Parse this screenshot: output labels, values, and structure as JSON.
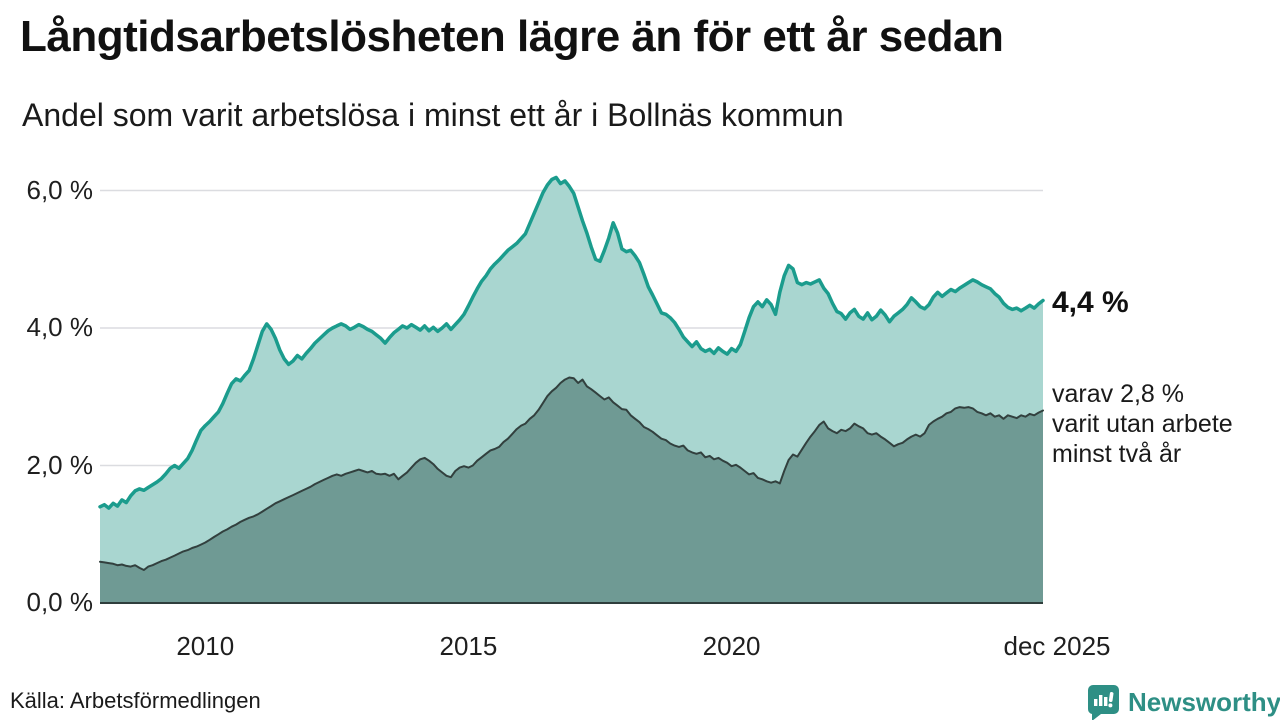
{
  "header": {
    "title": "Långtidsarbetslösheten lägre än för ett år sedan",
    "subtitle": "Andel som varit arbetslösa i minst ett år i Bollnäs kommun"
  },
  "annotations": {
    "latest_total": "4,4 %",
    "breakdown_lines": [
      "varav 2,8 %",
      "varit utan arbete",
      "minst två år"
    ]
  },
  "footer": {
    "source": "Källa: Arbetsförmedlingen",
    "brand_name": "Newsworthy",
    "brand_color": "#2e8f85"
  },
  "chart_data": {
    "type": "area",
    "unit": "%",
    "x_monthly_start": "2008-01",
    "x_monthly_end": "2025-12",
    "ylim": [
      0,
      6.6
    ],
    "grid": true,
    "grid_color": "#dbdce0",
    "axis_line_color": "#2f3e3c",
    "y_ticks": [
      {
        "label": "0,0 %",
        "v": 0
      },
      {
        "label": "2,0 %",
        "v": 2
      },
      {
        "label": "4,0 %",
        "v": 4
      },
      {
        "label": "6,0 %",
        "v": 6
      }
    ],
    "x_ticks": [
      {
        "label": "2010",
        "t": 2010.0,
        "dx": 0
      },
      {
        "label": "2015",
        "t": 2015.0,
        "dx": 0
      },
      {
        "label": "2020",
        "t": 2020.0,
        "dx": 0
      },
      {
        "label": "dec 2025",
        "t": 2025.917,
        "dx": 14
      }
    ],
    "series": [
      {
        "name": "Andel arbetslösa minst ett år",
        "line_color": "#1b9c8d",
        "fill_color": "#a9d6d0",
        "line_width": 3.5,
        "last_value_label": "4,4 %",
        "values": [
          1.4,
          1.43,
          1.38,
          1.45,
          1.41,
          1.5,
          1.46,
          1.56,
          1.63,
          1.66,
          1.64,
          1.68,
          1.72,
          1.76,
          1.81,
          1.88,
          1.96,
          2.0,
          1.96,
          2.03,
          2.1,
          2.22,
          2.37,
          2.51,
          2.58,
          2.64,
          2.71,
          2.78,
          2.9,
          3.05,
          3.19,
          3.26,
          3.23,
          3.31,
          3.38,
          3.55,
          3.75,
          3.95,
          4.06,
          3.98,
          3.85,
          3.68,
          3.55,
          3.47,
          3.52,
          3.6,
          3.55,
          3.63,
          3.7,
          3.78,
          3.84,
          3.9,
          3.96,
          4.0,
          4.03,
          4.06,
          4.03,
          3.98,
          4.01,
          4.05,
          4.02,
          3.98,
          3.95,
          3.9,
          3.85,
          3.78,
          3.86,
          3.93,
          3.98,
          4.03,
          4.0,
          4.05,
          4.01,
          3.97,
          4.03,
          3.96,
          4.01,
          3.95,
          4.0,
          4.06,
          3.98,
          4.05,
          4.12,
          4.2,
          4.32,
          4.45,
          4.57,
          4.68,
          4.76,
          4.86,
          4.93,
          4.99,
          5.06,
          5.13,
          5.18,
          5.23,
          5.3,
          5.37,
          5.52,
          5.67,
          5.82,
          5.97,
          6.08,
          6.16,
          6.19,
          6.1,
          6.14,
          6.06,
          5.96,
          5.76,
          5.56,
          5.38,
          5.18,
          5.0,
          4.97,
          5.13,
          5.31,
          5.53,
          5.38,
          5.15,
          5.11,
          5.13,
          5.05,
          4.95,
          4.78,
          4.6,
          4.48,
          4.35,
          4.22,
          4.2,
          4.15,
          4.08,
          3.98,
          3.87,
          3.8,
          3.73,
          3.8,
          3.7,
          3.66,
          3.69,
          3.63,
          3.71,
          3.66,
          3.62,
          3.7,
          3.66,
          3.76,
          3.95,
          4.15,
          4.31,
          4.38,
          4.31,
          4.41,
          4.34,
          4.2,
          4.52,
          4.76,
          4.91,
          4.86,
          4.66,
          4.63,
          4.66,
          4.64,
          4.67,
          4.7,
          4.58,
          4.5,
          4.36,
          4.24,
          4.21,
          4.13,
          4.22,
          4.27,
          4.17,
          4.13,
          4.22,
          4.12,
          4.17,
          4.26,
          4.19,
          4.09,
          4.17,
          4.22,
          4.27,
          4.34,
          4.44,
          4.38,
          4.31,
          4.28,
          4.34,
          4.45,
          4.52,
          4.46,
          4.51,
          4.56,
          4.53,
          4.58,
          4.62,
          4.66,
          4.7,
          4.67,
          4.63,
          4.6,
          4.57,
          4.5,
          4.45,
          4.36,
          4.3,
          4.27,
          4.29,
          4.25,
          4.29,
          4.33,
          4.29,
          4.35,
          4.4
        ]
      },
      {
        "name": "Andel arbetslösa minst två år",
        "line_color": "#32403e",
        "fill_color": "#6f9a94",
        "line_width": 2,
        "last_value_label": "2,8 %",
        "values": [
          0.6,
          0.59,
          0.58,
          0.57,
          0.55,
          0.56,
          0.54,
          0.53,
          0.55,
          0.51,
          0.48,
          0.53,
          0.55,
          0.58,
          0.61,
          0.63,
          0.66,
          0.69,
          0.72,
          0.75,
          0.77,
          0.8,
          0.82,
          0.85,
          0.88,
          0.92,
          0.96,
          1.0,
          1.04,
          1.07,
          1.11,
          1.14,
          1.18,
          1.21,
          1.24,
          1.26,
          1.29,
          1.33,
          1.37,
          1.41,
          1.45,
          1.48,
          1.51,
          1.54,
          1.57,
          1.6,
          1.63,
          1.66,
          1.69,
          1.73,
          1.76,
          1.79,
          1.82,
          1.85,
          1.87,
          1.85,
          1.88,
          1.9,
          1.92,
          1.94,
          1.92,
          1.9,
          1.92,
          1.88,
          1.87,
          1.88,
          1.85,
          1.88,
          1.8,
          1.85,
          1.9,
          1.97,
          2.04,
          2.09,
          2.11,
          2.07,
          2.02,
          1.95,
          1.9,
          1.85,
          1.83,
          1.92,
          1.97,
          1.99,
          1.97,
          2.0,
          2.07,
          2.12,
          2.17,
          2.22,
          2.24,
          2.27,
          2.34,
          2.39,
          2.46,
          2.53,
          2.58,
          2.61,
          2.68,
          2.73,
          2.81,
          2.91,
          3.01,
          3.08,
          3.13,
          3.2,
          3.25,
          3.28,
          3.27,
          3.2,
          3.25,
          3.15,
          3.11,
          3.06,
          3.01,
          2.96,
          2.99,
          2.92,
          2.87,
          2.82,
          2.81,
          2.73,
          2.68,
          2.63,
          2.56,
          2.53,
          2.49,
          2.44,
          2.39,
          2.37,
          2.32,
          2.29,
          2.27,
          2.29,
          2.22,
          2.19,
          2.17,
          2.19,
          2.12,
          2.14,
          2.09,
          2.11,
          2.07,
          2.04,
          1.99,
          2.01,
          1.97,
          1.92,
          1.87,
          1.89,
          1.82,
          1.8,
          1.77,
          1.75,
          1.77,
          1.74,
          1.92,
          2.08,
          2.16,
          2.13,
          2.23,
          2.33,
          2.42,
          2.5,
          2.59,
          2.64,
          2.54,
          2.5,
          2.47,
          2.52,
          2.5,
          2.54,
          2.61,
          2.57,
          2.54,
          2.47,
          2.45,
          2.47,
          2.42,
          2.38,
          2.33,
          2.28,
          2.31,
          2.33,
          2.38,
          2.42,
          2.45,
          2.42,
          2.47,
          2.59,
          2.64,
          2.68,
          2.71,
          2.76,
          2.78,
          2.83,
          2.85,
          2.84,
          2.85,
          2.83,
          2.78,
          2.76,
          2.73,
          2.76,
          2.71,
          2.73,
          2.68,
          2.73,
          2.71,
          2.69,
          2.73,
          2.71,
          2.75,
          2.73,
          2.77,
          2.8
        ]
      }
    ]
  }
}
